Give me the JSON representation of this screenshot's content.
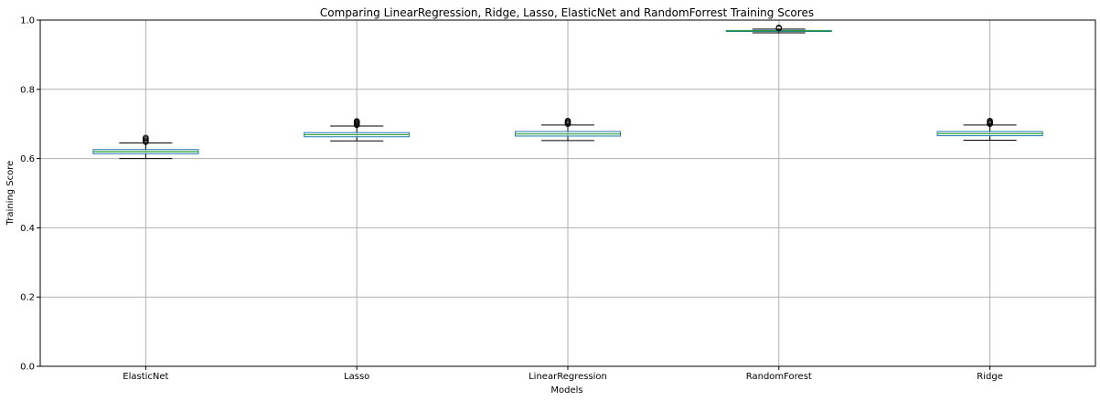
{
  "chart_data": {
    "type": "box",
    "title": "Comparing LinearRegression, Ridge, Lasso, ElasticNet and RandomForrest Training Scores",
    "xlabel": "Models",
    "ylabel": "Training Score",
    "ylim": [
      0,
      1.0
    ],
    "yticks": [
      "0.0",
      "0.2",
      "0.4",
      "0.6",
      "0.8",
      "1.0"
    ],
    "grid": true,
    "categories": [
      "ElasticNet",
      "Lasso",
      "LinearRegression",
      "RandomForest",
      "Ridge"
    ],
    "boxes": [
      {
        "name": "ElasticNet",
        "whisker_low": 0.6,
        "q1": 0.614,
        "median": 0.62,
        "q3": 0.626,
        "whisker_high": 0.645,
        "outliers": [
          0.648,
          0.652,
          0.656,
          0.66
        ]
      },
      {
        "name": "Lasso",
        "whisker_low": 0.651,
        "q1": 0.663,
        "median": 0.669,
        "q3": 0.675,
        "whisker_high": 0.694,
        "outliers": [
          0.697,
          0.7,
          0.703,
          0.706,
          0.708
        ]
      },
      {
        "name": "LinearRegression",
        "whisker_low": 0.652,
        "q1": 0.665,
        "median": 0.671,
        "q3": 0.678,
        "whisker_high": 0.697,
        "outliers": [
          0.7,
          0.703,
          0.706,
          0.709
        ]
      },
      {
        "name": "RandomForest",
        "whisker_low": 0.963,
        "q1": 0.967,
        "median": 0.969,
        "q3": 0.97,
        "whisker_high": 0.974,
        "outliers": [
          0.976,
          0.978
        ]
      },
      {
        "name": "Ridge",
        "whisker_low": 0.653,
        "q1": 0.666,
        "median": 0.672,
        "q3": 0.678,
        "whisker_high": 0.697,
        "outliers": [
          0.7,
          0.703,
          0.706,
          0.709
        ]
      }
    ],
    "colors": {
      "box": "#1f77b4",
      "median": "#2ca02c",
      "whisker": "#000000",
      "grid": "#b0b0b0"
    }
  }
}
